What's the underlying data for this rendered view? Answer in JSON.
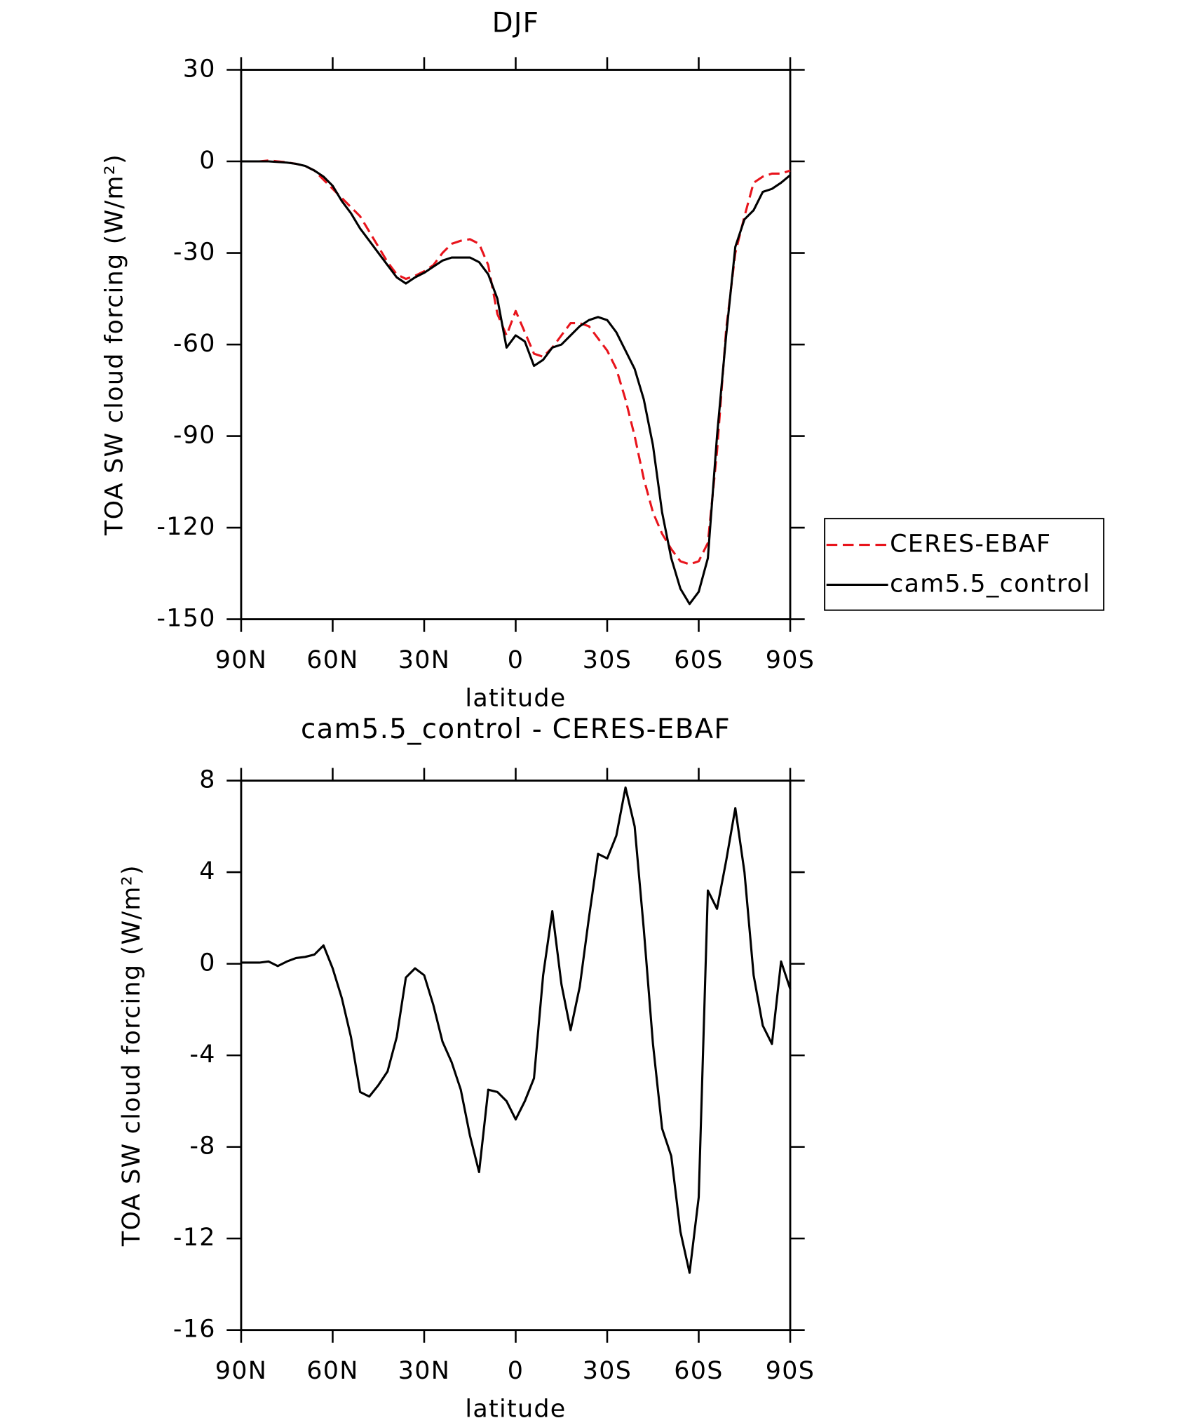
{
  "chart_data": [
    {
      "type": "line",
      "title": "DJF",
      "xlabel": "latitude",
      "ylabel": "TOA SW cloud forcing (W/m²)",
      "x": [
        90,
        87,
        84,
        81,
        78,
        75,
        72,
        69,
        66,
        63,
        60,
        57,
        54,
        51,
        48,
        45,
        42,
        39,
        36,
        33,
        30,
        27,
        24,
        21,
        18,
        15,
        12,
        9,
        6,
        3,
        0,
        -3,
        -6,
        -9,
        -12,
        -15,
        -18,
        -21,
        -24,
        -27,
        -30,
        -33,
        -36,
        -39,
        -42,
        -45,
        -48,
        -51,
        -54,
        -57,
        -60,
        -63,
        -66,
        -69,
        -72,
        -75,
        -78,
        -81,
        -84,
        -87,
        -90
      ],
      "series": [
        {
          "name": "CERES-EBAF",
          "color": "#e8141c",
          "style": "dashed",
          "values": [
            0,
            0,
            0,
            0.3,
            0,
            -0.3,
            -0.8,
            -1.5,
            -3,
            -6,
            -9,
            -12,
            -15,
            -18,
            -23,
            -28,
            -33,
            -37,
            -38.5,
            -37.5,
            -36,
            -34,
            -30,
            -27,
            -26,
            -25.5,
            -27,
            -34,
            -50,
            -57,
            -49,
            -56,
            -63,
            -64,
            -61,
            -57,
            -53,
            -53,
            -54,
            -58,
            -62,
            -68,
            -78,
            -90,
            -104,
            -115,
            -122,
            -127,
            -131,
            -132,
            -131,
            -125,
            -95,
            -55,
            -30,
            -18,
            -7,
            -5,
            -4,
            -4,
            -3
          ]
        },
        {
          "name": "cam5.5_control",
          "color": "#000000",
          "style": "solid",
          "values": [
            0,
            0,
            0,
            0,
            -0.2,
            -0.4,
            -0.8,
            -1.5,
            -3,
            -5,
            -8,
            -13,
            -17,
            -22,
            -26,
            -30,
            -34,
            -38,
            -40,
            -38,
            -36.5,
            -34.5,
            -32.5,
            -31.5,
            -31.5,
            -31.5,
            -33,
            -37,
            -45,
            -61,
            -57,
            -59,
            -67,
            -65,
            -61,
            -60,
            -57,
            -54,
            -52,
            -51,
            -52,
            -56,
            -62,
            -68,
            -78,
            -93,
            -115,
            -130,
            -140,
            -145,
            -141,
            -130,
            -90,
            -57,
            -28,
            -19,
            -16,
            -10,
            -9,
            -7,
            -4.5
          ]
        }
      ],
      "xlim": [
        90,
        -90
      ],
      "xticks": [
        {
          "value": 90,
          "label": "90N"
        },
        {
          "value": 60,
          "label": "60N"
        },
        {
          "value": 30,
          "label": "30N"
        },
        0,
        {
          "value": -30,
          "label": "30S"
        },
        {
          "value": -60,
          "label": "60S"
        },
        {
          "value": -90,
          "label": "90S"
        }
      ],
      "ylim": [
        -150,
        30
      ],
      "yticks": [
        30,
        0,
        -30,
        -60,
        -90,
        -120,
        -150
      ],
      "legend": "right"
    },
    {
      "type": "line",
      "title": "cam5.5_control - CERES-EBAF",
      "xlabel": "latitude",
      "ylabel": "TOA SW cloud forcing (W/m²)",
      "x": [
        90,
        87,
        84,
        81,
        78,
        75,
        72,
        69,
        66,
        63,
        60,
        57,
        54,
        51,
        48,
        45,
        42,
        39,
        36,
        33,
        30,
        27,
        24,
        21,
        18,
        15,
        12,
        9,
        6,
        3,
        0,
        -3,
        -6,
        -9,
        -12,
        -15,
        -18,
        -21,
        -24,
        -27,
        -30,
        -33,
        -36,
        -39,
        -42,
        -45,
        -48,
        -51,
        -54,
        -57,
        -60,
        -63,
        -66,
        -69,
        -72,
        -75,
        -78,
        -81,
        -84,
        -87,
        -90
      ],
      "series": [
        {
          "color": "#000000",
          "style": "solid",
          "values": [
            0.05,
            0.05,
            0.05,
            0.1,
            -0.1,
            0.1,
            0.25,
            0.3,
            0.4,
            0.8,
            -0.2,
            -1.5,
            -3.2,
            -5.6,
            -5.8,
            -5.3,
            -4.7,
            -3.2,
            -0.6,
            -0.2,
            -0.5,
            -1.8,
            -3.4,
            -4.3,
            -5.5,
            -7.5,
            -9.1,
            -5.5,
            -5.6,
            -6.0,
            -6.8,
            -6.0,
            -5.0,
            -0.5,
            2.3,
            -0.9,
            -2.9,
            -1.0,
            2.0,
            4.8,
            4.6,
            5.6,
            7.7,
            6.0,
            1.5,
            -3.5,
            -7.2,
            -8.4,
            -11.7,
            -13.5,
            -10.2,
            3.2,
            2.4,
            4.5,
            6.8,
            4.0,
            -0.5,
            -2.7,
            -3.5,
            0.1,
            -1.1
          ]
        }
      ],
      "xlim": [
        90,
        -90
      ],
      "xticks": [
        {
          "value": 90,
          "label": "90N"
        },
        {
          "value": 60,
          "label": "60N"
        },
        {
          "value": 30,
          "label": "30N"
        },
        0,
        {
          "value": -30,
          "label": "30S"
        },
        {
          "value": -60,
          "label": "60S"
        },
        {
          "value": -90,
          "label": "90S"
        }
      ],
      "ylim": [
        -16,
        8
      ],
      "yticks": [
        8,
        4,
        0,
        -4,
        -8,
        -12,
        -16
      ]
    }
  ]
}
